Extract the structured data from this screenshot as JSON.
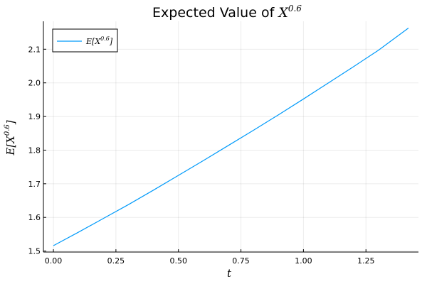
{
  "chart_data": {
    "type": "line",
    "title": "Expected Value of X^{0.6}",
    "title_prefix": "Expected Value of ",
    "title_base": "X",
    "title_exp": "0.6",
    "xlabel": "t",
    "ylabel": "E[X^{0.6}]",
    "ylabel_base": "E[X",
    "ylabel_exp": "0.6",
    "ylabel_close": "]",
    "xlim": [
      -0.04,
      1.46
    ],
    "ylim": [
      1.497,
      2.183
    ],
    "xticks": [
      0.0,
      0.25,
      0.5,
      0.75,
      1.0,
      1.25
    ],
    "xtick_labels": [
      "0.00",
      "0.25",
      "0.50",
      "0.75",
      "1.00",
      "1.25"
    ],
    "yticks": [
      1.5,
      1.6,
      1.7,
      1.8,
      1.9,
      2.0,
      2.1
    ],
    "ytick_labels": [
      "1.5",
      "1.6",
      "1.7",
      "1.8",
      "1.9",
      "2.0",
      "2.1"
    ],
    "grid": true,
    "legend_position": "top-left",
    "series": [
      {
        "name": "E[X^{0.6}]",
        "name_base": "E[X",
        "name_exp": "0.6",
        "name_close": "]",
        "color": "#009AFA",
        "x": [
          0.0,
          0.1,
          0.2,
          0.3,
          0.4,
          0.5,
          0.6,
          0.7,
          0.8,
          0.9,
          1.0,
          1.1,
          1.2,
          1.3,
          1.42
        ],
        "y": [
          1.516,
          1.556,
          1.597,
          1.638,
          1.681,
          1.725,
          1.769,
          1.814,
          1.859,
          1.905,
          1.952,
          2.0,
          2.048,
          2.097,
          2.163
        ]
      }
    ]
  }
}
